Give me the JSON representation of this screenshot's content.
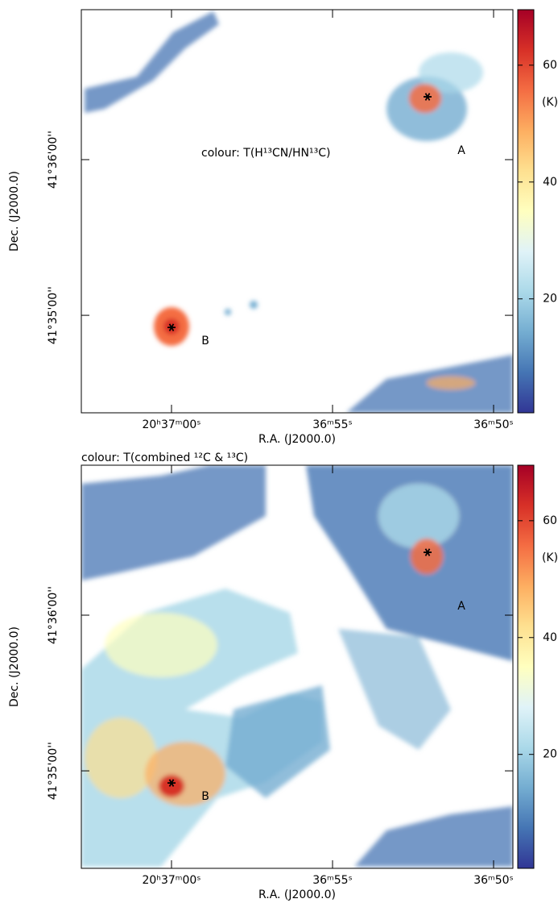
{
  "chart_data": [
    {
      "type": "heatmap",
      "annotation": "colour: T(H¹³CN/HN¹³C)",
      "xlabel": "R.A. (J2000.0)",
      "ylabel": "Dec. (J2000.0)",
      "xlim": [
        62.8,
        49.4
      ],
      "xticks": [
        {
          "value": 60,
          "label": "20ʰ37ᵐ00ˢ"
        },
        {
          "value": 55,
          "label": "36ᵐ55ˢ"
        },
        {
          "value": 50,
          "label": "36ᵐ50ˢ"
        }
      ],
      "ylim": [
        41.57289,
        41.61606
      ],
      "yticks": [
        {
          "value": 41.58333,
          "label": "41°35'00''"
        },
        {
          "value": 41.6,
          "label": "41°36'00''"
        }
      ],
      "colorbar": {
        "lim": [
          0.5,
          69.5
        ],
        "ticks": [
          20,
          40,
          60
        ],
        "label": "(K)",
        "colors": [
          "#313695",
          "#4575b4",
          "#74add1",
          "#abd9e9",
          "#e0f3f8",
          "#ffffbf",
          "#fee090",
          "#fdae61",
          "#f46d43",
          "#d73027",
          "#a50026"
        ]
      },
      "sources": [
        {
          "label": "A",
          "x": 52.05,
          "y": 41.60673
        },
        {
          "label": "B",
          "x": 60.0,
          "y": 41.58203
        }
      ]
    },
    {
      "type": "heatmap",
      "annotation": "colour: T(combined ¹²C & ¹³C)",
      "xlabel": "R.A. (J2000.0)",
      "ylabel": "Dec. (J2000.0)",
      "xlim": [
        62.8,
        49.4
      ],
      "xticks": [
        {
          "value": 60,
          "label": "20ʰ37ᵐ00ˢ"
        },
        {
          "value": 55,
          "label": "36ᵐ55ˢ"
        },
        {
          "value": 50,
          "label": "36ᵐ50ˢ"
        }
      ],
      "ylim": [
        41.57289,
        41.61606
      ],
      "yticks": [
        {
          "value": 41.58333,
          "label": "41°35'00''"
        },
        {
          "value": 41.6,
          "label": "41°36'00''"
        }
      ],
      "colorbar": {
        "lim": [
          0.5,
          69.5
        ],
        "ticks": [
          20,
          40,
          60
        ],
        "label": "(K)",
        "colors": [
          "#313695",
          "#4575b4",
          "#74add1",
          "#abd9e9",
          "#e0f3f8",
          "#ffffbf",
          "#fee090",
          "#fdae61",
          "#f46d43",
          "#d73027",
          "#a50026"
        ]
      },
      "sources": [
        {
          "label": "A",
          "x": 52.05,
          "y": 41.60673
        },
        {
          "label": "B",
          "x": 60.0,
          "y": 41.58203
        }
      ]
    }
  ]
}
